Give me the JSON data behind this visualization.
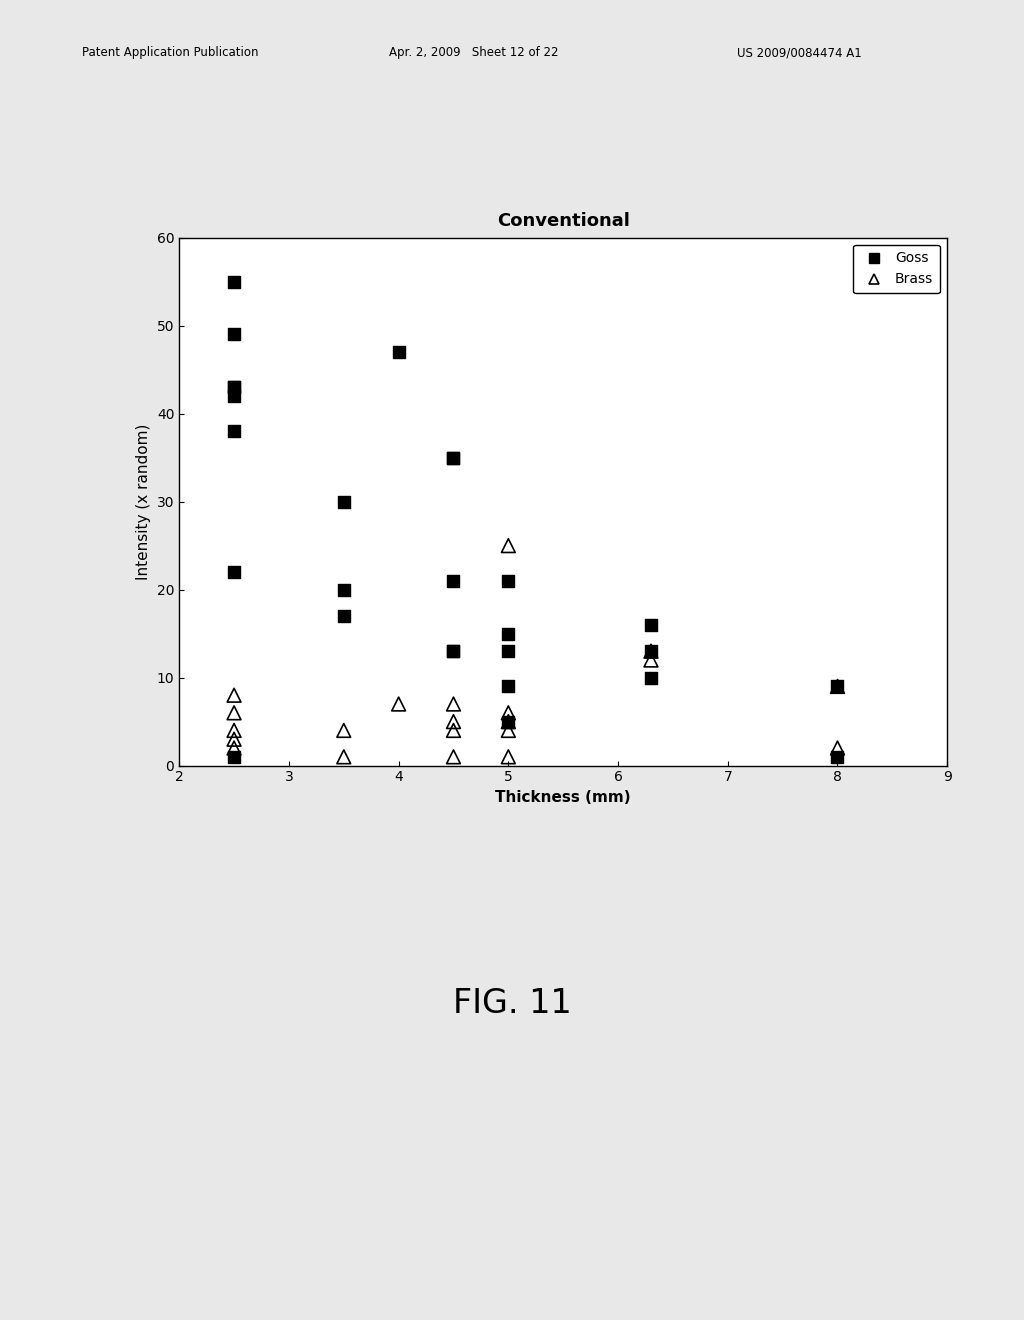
{
  "title": "Conventional",
  "xlabel": "Thickness (mm)",
  "ylabel": "Intensity (x random)",
  "xlim": [
    2,
    9
  ],
  "ylim": [
    0,
    60
  ],
  "xticks": [
    2,
    3,
    4,
    5,
    6,
    7,
    8,
    9
  ],
  "yticks": [
    0,
    10,
    20,
    30,
    40,
    50,
    60
  ],
  "goss_x": [
    2.5,
    2.5,
    2.5,
    2.5,
    2.5,
    2.5,
    2.5,
    2.5,
    3.5,
    3.5,
    3.5,
    4.0,
    4.5,
    4.5,
    4.5,
    4.5,
    4.5,
    5.0,
    5.0,
    5.0,
    5.0,
    5.0,
    6.3,
    6.3,
    6.3,
    8.0,
    8.0
  ],
  "goss_y": [
    55,
    49,
    43,
    43,
    42,
    38,
    22,
    1,
    30,
    20,
    17,
    47,
    35,
    35,
    21,
    13,
    13,
    21,
    15,
    13,
    9,
    5,
    16,
    13,
    10,
    9,
    1
  ],
  "brass_x": [
    2.5,
    2.5,
    2.5,
    2.5,
    2.5,
    3.5,
    3.5,
    4.0,
    4.5,
    4.5,
    4.5,
    4.5,
    5.0,
    5.0,
    5.0,
    5.0,
    5.0,
    6.3,
    6.3,
    8.0,
    8.0
  ],
  "brass_y": [
    8,
    6,
    4,
    3,
    2,
    4,
    1,
    7,
    7,
    5,
    4,
    1,
    25,
    6,
    5,
    4,
    1,
    13,
    12,
    9,
    2
  ],
  "background_color": "#e8e8e8",
  "plot_bg_color": "#ffffff",
  "title_fontsize": 13,
  "label_fontsize": 11,
  "tick_fontsize": 10,
  "legend_fontsize": 10,
  "goss_color": "#000000",
  "brass_color": "#000000",
  "marker_size": 7,
  "header_left": "Patent Application Publication",
  "header_mid": "Apr. 2, 2009   Sheet 12 of 22",
  "header_right": "US 2009/0084474 A1",
  "fig_label": "FIG. 11"
}
